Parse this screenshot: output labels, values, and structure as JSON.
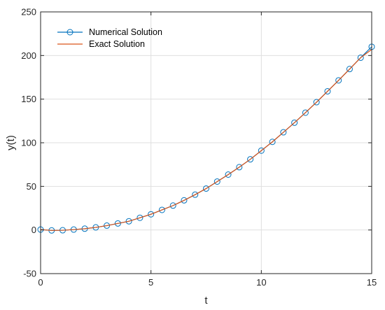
{
  "chart_data": {
    "type": "line",
    "title": "",
    "xlabel": "t",
    "ylabel": "y(t)",
    "xlim": [
      0,
      15
    ],
    "ylim": [
      -50,
      250
    ],
    "xticks": [
      "0",
      "5",
      "10",
      "15"
    ],
    "yticks": [
      "-50",
      "0",
      "50",
      "100",
      "150",
      "200",
      "250"
    ],
    "grid": true,
    "legend_position": "top-left",
    "series": [
      {
        "name": "Numerical Solution",
        "style": "line-with-circle-markers",
        "color": "#0072BD",
        "x": [
          0,
          0.5,
          1,
          1.5,
          2,
          2.5,
          3,
          3.5,
          4,
          4.5,
          5,
          5.5,
          6,
          6.5,
          7,
          7.5,
          8,
          8.5,
          9,
          9.5,
          10,
          10.5,
          11,
          11.5,
          12,
          12.5,
          13,
          13.5,
          14,
          14.5,
          15
        ],
        "y": [
          0.5,
          -0.5,
          -0.3,
          0.5,
          1.5,
          3,
          5,
          7.5,
          10,
          14,
          18,
          23,
          28,
          34,
          40.5,
          47.5,
          55.5,
          63.5,
          72,
          81,
          91,
          101,
          112,
          123,
          134.5,
          146.5,
          159,
          171.5,
          184.5,
          197.5,
          210
        ]
      },
      {
        "name": "Exact Solution",
        "style": "line",
        "color": "#D95319",
        "x": [
          0,
          0.5,
          1,
          1.5,
          2,
          2.5,
          3,
          3.5,
          4,
          4.5,
          5,
          5.5,
          6,
          6.5,
          7,
          7.5,
          8,
          8.5,
          9,
          9.5,
          10,
          10.5,
          11,
          11.5,
          12,
          12.5,
          13,
          13.5,
          14,
          14.5,
          15
        ],
        "y": [
          0.5,
          -0.5,
          -0.3,
          0.5,
          1.5,
          3,
          5,
          7.5,
          10,
          14,
          18,
          23,
          28,
          34,
          40.5,
          47.5,
          55.5,
          63.5,
          72,
          81,
          91,
          101,
          112,
          123,
          134.5,
          146.5,
          159,
          171.5,
          184.5,
          197.5,
          207
        ]
      }
    ]
  }
}
